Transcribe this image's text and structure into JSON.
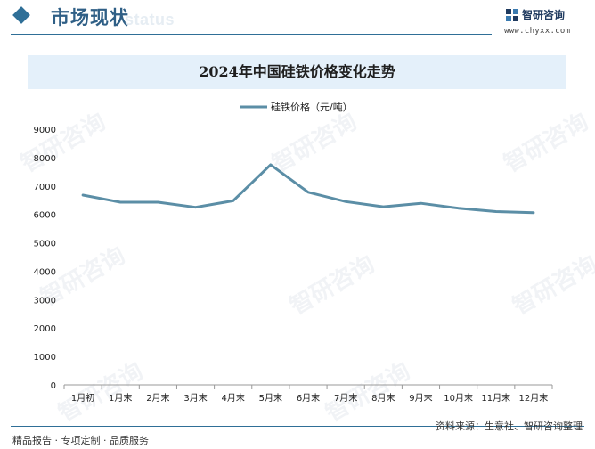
{
  "header": {
    "section_title": "市场现状",
    "ghost_word": "status",
    "brand_name": "智研咨询",
    "brand_url": "www.chyxx.com"
  },
  "banner": {
    "title": "2024年中国硅铁价格变化走势"
  },
  "watermark": {
    "text": "智研咨询"
  },
  "footer": {
    "left": "精品报告 · 专项定制 · 品质服务",
    "right": "资料来源：生意社、智研咨询整理"
  },
  "colors": {
    "line": "#5b8ea6",
    "accent": "#2f6f97",
    "banner_bg": "#e4f0fa"
  },
  "chart_data": {
    "type": "line",
    "categories": [
      "1月初",
      "1月末",
      "2月末",
      "3月末",
      "4月末",
      "5月末",
      "6月末",
      "7月末",
      "8月末",
      "9月末",
      "10月末",
      "11月末",
      "12月末"
    ],
    "series": [
      {
        "name": "硅铁价格（元/吨）",
        "values": [
          6680,
          6430,
          6430,
          6250,
          6480,
          7750,
          6780,
          6450,
          6270,
          6390,
          6220,
          6100,
          6060
        ]
      }
    ],
    "ylim": [
      0,
      9000
    ],
    "yticks": [
      0,
      1000,
      2000,
      3000,
      4000,
      5000,
      6000,
      7000,
      8000,
      9000
    ],
    "legend_position": "top-center",
    "grid": false
  }
}
